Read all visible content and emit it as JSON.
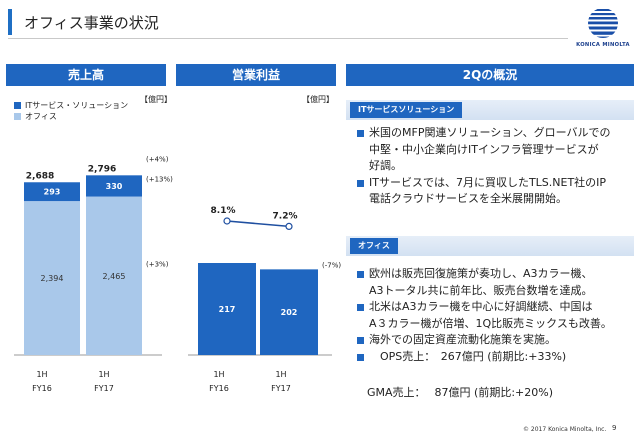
{
  "header": {
    "title": "オフィス事業の状況",
    "logo_text": "KONICA MINOLTA"
  },
  "panels": {
    "sales_title": "売上高",
    "profit_title": "営業利益",
    "summary_title": "2Qの概況"
  },
  "legend": {
    "it_services": "ITサービス・ソリューション",
    "office": "オフィス"
  },
  "units": {
    "sales": "【億円】",
    "profit": "【億円】"
  },
  "colors": {
    "brand_blue": "#1f66c0",
    "office_light": "#a9c8ea",
    "it_dark": "#1f66c0"
  },
  "chart_data": [
    {
      "type": "bar",
      "stacked": true,
      "categories": [
        "1H\nFY16",
        "1H\nFY17"
      ],
      "category_lines": [
        [
          "1H",
          "FY16"
        ],
        [
          "1H",
          "FY17"
        ]
      ],
      "series": [
        {
          "name": "オフィス",
          "values": [
            2394,
            2465
          ],
          "labels": [
            "2,394",
            "2,465"
          ],
          "change": "(+3%)"
        },
        {
          "name": "ITサービス・ソリューション",
          "values": [
            293,
            330
          ],
          "labels": [
            "293",
            "330"
          ],
          "change": "(+13%)"
        }
      ],
      "totals": [
        2688,
        2796
      ],
      "total_labels": [
        "2,688",
        "2,796"
      ],
      "total_change": "(+4%)"
    },
    {
      "type": "bar",
      "categories": [
        "1H\nFY16",
        "1H\nFY17"
      ],
      "category_lines": [
        [
          "1H",
          "FY16"
        ],
        [
          "1H",
          "FY17"
        ]
      ],
      "values": [
        217,
        202
      ],
      "labels": [
        "217",
        "202"
      ],
      "change": "(-7%)",
      "margin_line": {
        "type": "line",
        "values": [
          8.1,
          7.2
        ],
        "labels": [
          "8.1%",
          "7.2%"
        ]
      }
    }
  ],
  "summary": {
    "it_tag": "ITサービスソリューション",
    "it_bullets": [
      [
        "米国のMFP関連ソリューション、グローバルでの",
        "中堅・中小企業向けITインフラ管理サービスが",
        "好調。"
      ],
      [
        "ITサービスでは、7月に買収したTLS.NET社のIP",
        "電話クラウドサービスを全米展開開始。"
      ]
    ],
    "office_tag": "オフィス",
    "office_bullets": [
      [
        "欧州は販売回復施策が奏功し、A3カラー機、",
        "A3トータル共に前年比、販売台数増を達成。"
      ],
      [
        "北米はA3カラー機を中心に好調継続、中国は",
        "A３カラー機が倍増、1Q比販売ミックスも改善。"
      ],
      [
        "海外での固定資産流動化施策を実施。"
      ],
      [
        "　OPS売上：　267億円 (前期比:+33%)"
      ]
    ],
    "office_extra": "　GMA売上：　 87億円 (前期比:+20%)"
  },
  "footer": {
    "copyright": "© 2017 Konica Minolta, Inc.",
    "page": "9"
  }
}
